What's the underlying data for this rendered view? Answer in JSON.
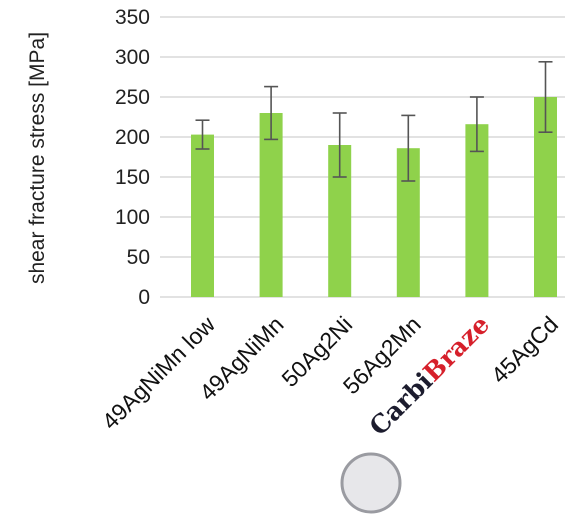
{
  "chart_data": {
    "type": "bar",
    "ylabel": "shear fracture stress [MPa]",
    "ylim": [
      0,
      350
    ],
    "yticks": [
      "0",
      "50",
      "100",
      "150",
      "200",
      "250",
      "300",
      "350"
    ],
    "grid": true,
    "categories": [
      "49AgNiMn low",
      "49AgNiMn",
      "50Ag2Ni",
      "56Ag2Mn",
      "CarbiBraze",
      "45AgCd"
    ],
    "values": [
      203,
      230,
      190,
      186,
      216,
      250
    ],
    "error": [
      18,
      33,
      40,
      41,
      34,
      44
    ],
    "bar_color": "#8fd24b",
    "error_color": "#555555",
    "highlight_label": {
      "index": 4,
      "part1": "Carbi",
      "part2": "Braze",
      "color1": "#1c1c2e",
      "color2": "#d6202b"
    }
  }
}
